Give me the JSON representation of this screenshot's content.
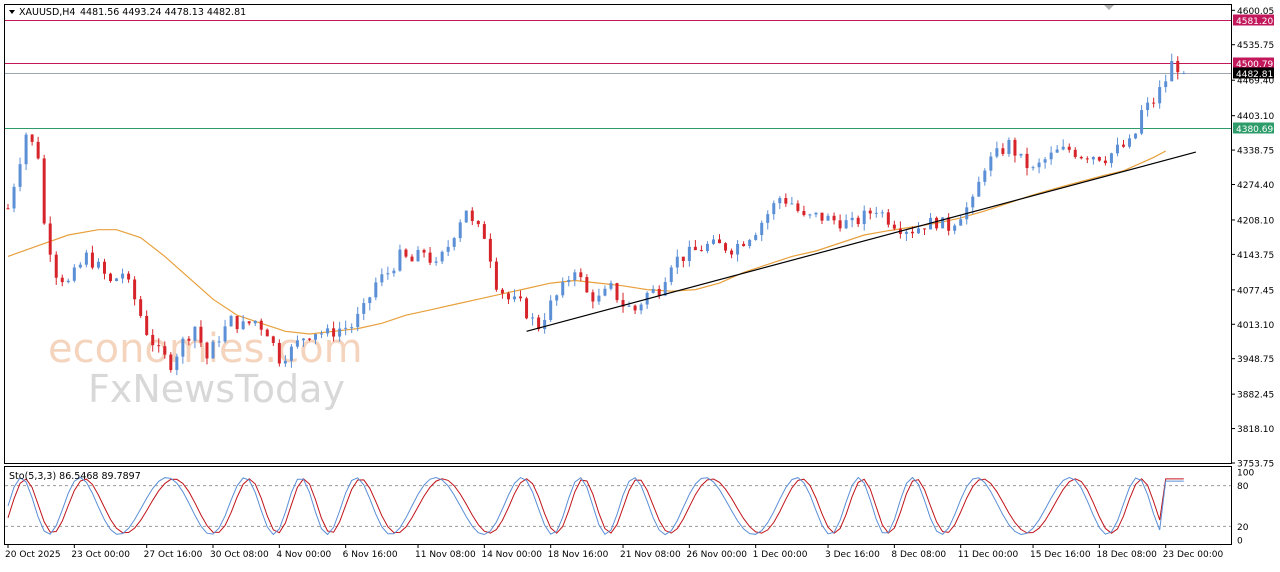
{
  "header": {
    "symbol_label": "XAUUSD,H4",
    "ohlc_label": "4481.56 4493.24 4478.13 4482.81"
  },
  "indicator": {
    "label": "Sto(5,3,3) 86.5468 89.7897",
    "levels": [
      20,
      80
    ]
  },
  "watermark": {
    "line1": "economies.com",
    "line2": "FxNewsToday"
  },
  "colors": {
    "bull": "#5b8fd6",
    "bear": "#d6242a",
    "ma": "#e8a03c",
    "resistance": "#c2185b",
    "support": "#2e9c6a",
    "current": "#000000",
    "trendline": "#000000",
    "stoch_k": "#5b8fd6",
    "stoch_d": "#c0141a"
  },
  "chart_data": {
    "type": "candlestick",
    "symbol": "XAUUSD",
    "timeframe": "H4",
    "current": {
      "open": 4481.56,
      "high": 4493.24,
      "low": 4478.13,
      "close": 4482.81
    },
    "price_axis_ticks": [
      4600.05,
      4535.75,
      4469.4,
      4403.1,
      4338.75,
      4274.4,
      4208.1,
      4143.75,
      4077.45,
      4013.1,
      3948.75,
      3882.45,
      3818.1,
      3753.75
    ],
    "ylim": [
      3753.75,
      4610
    ],
    "horizontal_lines": [
      {
        "label": "4581.20",
        "price": 4581.2,
        "role": "resistance"
      },
      {
        "label": "4500.79",
        "price": 4500.79,
        "role": "resistance"
      },
      {
        "label": "4482.81",
        "price": 4482.81,
        "role": "current"
      },
      {
        "label": "4380.69",
        "price": 4380.69,
        "role": "support"
      }
    ],
    "trendline": {
      "from": {
        "bar": 86,
        "price": 4000
      },
      "to": {
        "bar": 197,
        "price": 4335
      }
    },
    "bar_count": 203,
    "x_tick_labels": [
      {
        "bar": 0,
        "label": "20 Oct 2025"
      },
      {
        "bar": 11,
        "label": "23 Oct 00:00"
      },
      {
        "bar": 23,
        "label": "27 Oct 16:00"
      },
      {
        "bar": 34,
        "label": "30 Oct 08:00"
      },
      {
        "bar": 45,
        "label": "4 Nov 00:00"
      },
      {
        "bar": 56,
        "label": "6 Nov 16:00"
      },
      {
        "bar": 68,
        "label": "11 Nov 08:00"
      },
      {
        "bar": 79,
        "label": "14 Nov 00:00"
      },
      {
        "bar": 90,
        "label": "18 Nov 16:00"
      },
      {
        "bar": 102,
        "label": "21 Nov 08:00"
      },
      {
        "bar": 113,
        "label": "26 Nov 00:00"
      },
      {
        "bar": 124,
        "label": "1 Dec 00:00"
      },
      {
        "bar": 136,
        "label": "3 Dec 16:00"
      },
      {
        "bar": 147,
        "label": "8 Dec 08:00"
      },
      {
        "bar": 158,
        "label": "11 Dec 00:00"
      },
      {
        "bar": 170,
        "label": "15 Dec 16:00"
      },
      {
        "bar": 181,
        "label": "18 Dec 08:00"
      },
      {
        "bar": 192,
        "label": "23 Dec 00:00"
      }
    ],
    "close_path": [
      [
        0,
        4230
      ],
      [
        3,
        4370
      ],
      [
        5,
        4330
      ],
      [
        6,
        4200
      ],
      [
        8,
        4110
      ],
      [
        10,
        4090
      ],
      [
        13,
        4140
      ],
      [
        15,
        4120
      ],
      [
        17,
        4090
      ],
      [
        19,
        4110
      ],
      [
        21,
        4060
      ],
      [
        23,
        4000
      ],
      [
        25,
        3960
      ],
      [
        27,
        3940
      ],
      [
        29,
        3980
      ],
      [
        31,
        4010
      ],
      [
        33,
        3950
      ],
      [
        35,
        3990
      ],
      [
        37,
        4020
      ],
      [
        39,
        4010
      ],
      [
        41,
        4020
      ],
      [
        43,
        4000
      ],
      [
        45,
        3950
      ],
      [
        47,
        3965
      ],
      [
        49,
        3990
      ],
      [
        51,
        4000
      ],
      [
        53,
        3995
      ],
      [
        55,
        4005
      ],
      [
        57,
        4010
      ],
      [
        59,
        4040
      ],
      [
        61,
        4090
      ],
      [
        63,
        4110
      ],
      [
        65,
        4140
      ],
      [
        67,
        4130
      ],
      [
        69,
        4150
      ],
      [
        71,
        4120
      ],
      [
        73,
        4160
      ],
      [
        75,
        4210
      ],
      [
        76,
        4230
      ],
      [
        77,
        4200
      ],
      [
        79,
        4180
      ],
      [
        80,
        4140
      ],
      [
        81,
        4090
      ],
      [
        83,
        4060
      ],
      [
        85,
        4050
      ],
      [
        87,
        4020
      ],
      [
        88,
        4010
      ],
      [
        90,
        4050
      ],
      [
        92,
        4080
      ],
      [
        94,
        4120
      ],
      [
        96,
        4070
      ],
      [
        98,
        4060
      ],
      [
        100,
        4080
      ],
      [
        102,
        4050
      ],
      [
        104,
        4040
      ],
      [
        106,
        4070
      ],
      [
        108,
        4080
      ],
      [
        110,
        4130
      ],
      [
        112,
        4140
      ],
      [
        114,
        4150
      ],
      [
        116,
        4160
      ],
      [
        118,
        4160
      ],
      [
        120,
        4155
      ],
      [
        122,
        4170
      ],
      [
        124,
        4190
      ],
      [
        126,
        4220
      ],
      [
        128,
        4250
      ],
      [
        130,
        4240
      ],
      [
        132,
        4210
      ],
      [
        134,
        4215
      ],
      [
        136,
        4210
      ],
      [
        138,
        4205
      ],
      [
        140,
        4200
      ],
      [
        142,
        4215
      ],
      [
        144,
        4230
      ],
      [
        146,
        4210
      ],
      [
        148,
        4195
      ],
      [
        150,
        4190
      ],
      [
        152,
        4200
      ],
      [
        154,
        4205
      ],
      [
        156,
        4195
      ],
      [
        158,
        4220
      ],
      [
        160,
        4240
      ],
      [
        162,
        4310
      ],
      [
        164,
        4330
      ],
      [
        166,
        4350
      ],
      [
        168,
        4320
      ],
      [
        170,
        4300
      ],
      [
        172,
        4320
      ],
      [
        174,
        4335
      ],
      [
        176,
        4340
      ],
      [
        178,
        4330
      ],
      [
        180,
        4330
      ],
      [
        182,
        4325
      ],
      [
        184,
        4340
      ],
      [
        186,
        4350
      ],
      [
        187,
        4370
      ],
      [
        188,
        4410
      ],
      [
        190,
        4430
      ],
      [
        192,
        4470
      ],
      [
        193,
        4500
      ],
      [
        194,
        4495
      ],
      [
        195,
        4483
      ]
    ],
    "ma_path": [
      [
        0,
        4140
      ],
      [
        5,
        4160
      ],
      [
        10,
        4180
      ],
      [
        15,
        4190
      ],
      [
        18,
        4190
      ],
      [
        22,
        4175
      ],
      [
        26,
        4140
      ],
      [
        30,
        4100
      ],
      [
        34,
        4060
      ],
      [
        38,
        4030
      ],
      [
        42,
        4015
      ],
      [
        46,
        4000
      ],
      [
        50,
        3995
      ],
      [
        54,
        4000
      ],
      [
        58,
        4005
      ],
      [
        62,
        4015
      ],
      [
        66,
        4030
      ],
      [
        70,
        4040
      ],
      [
        74,
        4050
      ],
      [
        78,
        4060
      ],
      [
        82,
        4070
      ],
      [
        86,
        4080
      ],
      [
        90,
        4090
      ],
      [
        94,
        4095
      ],
      [
        98,
        4090
      ],
      [
        102,
        4085
      ],
      [
        106,
        4078
      ],
      [
        110,
        4075
      ],
      [
        114,
        4078
      ],
      [
        118,
        4090
      ],
      [
        122,
        4110
      ],
      [
        126,
        4125
      ],
      [
        130,
        4140
      ],
      [
        134,
        4150
      ],
      [
        138,
        4165
      ],
      [
        142,
        4180
      ],
      [
        146,
        4188
      ],
      [
        150,
        4195
      ],
      [
        154,
        4202
      ],
      [
        158,
        4212
      ],
      [
        162,
        4225
      ],
      [
        166,
        4240
      ],
      [
        170,
        4255
      ],
      [
        174,
        4268
      ],
      [
        178,
        4280
      ],
      [
        182,
        4292
      ],
      [
        185,
        4300
      ],
      [
        188,
        4315
      ],
      [
        190,
        4325
      ],
      [
        192,
        4337
      ]
    ],
    "stochastic": {
      "label": "Sto(5,3,3)",
      "k": 86.5468,
      "d": 89.7897,
      "ylim": [
        0,
        100
      ],
      "axis_ticks": [
        100,
        80,
        20,
        0
      ],
      "levels": [
        20,
        80
      ]
    }
  }
}
